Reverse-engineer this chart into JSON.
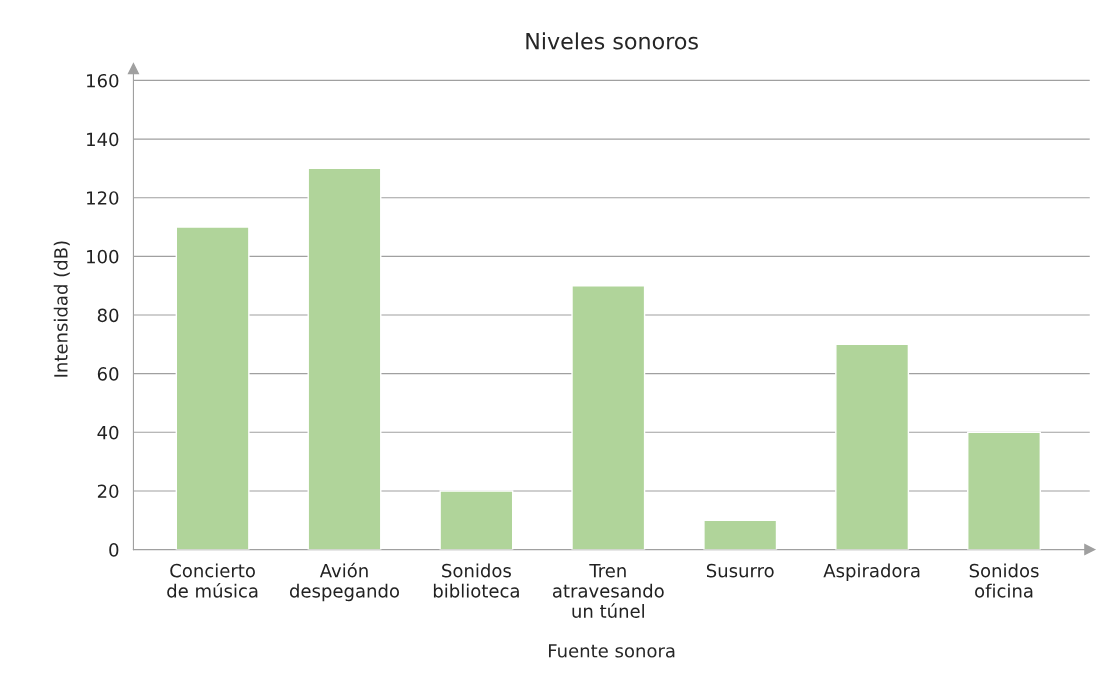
{
  "chart_data": {
    "type": "bar",
    "title": "Niveles sonoros",
    "xlabel": "Fuente sonora",
    "ylabel": "Intensidad (dB)",
    "categories": [
      "Concierto\nde música",
      "Avión\ndespegando",
      "Sonidos\nbiblioteca",
      "Tren\natravesando\nun túnel",
      "Susurro",
      "Aspiradora",
      "Sonidos\noficina"
    ],
    "values": [
      110,
      130,
      20,
      90,
      10,
      70,
      40
    ],
    "color": "#b0d49a",
    "ylim": [
      0,
      164
    ],
    "yticks": [
      0,
      20,
      40,
      60,
      80,
      100,
      120,
      140,
      160
    ],
    "grid": "y",
    "legend": false
  }
}
